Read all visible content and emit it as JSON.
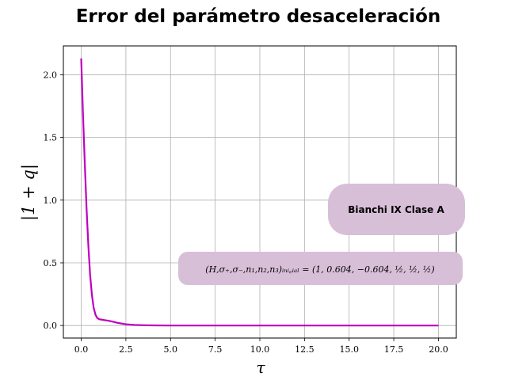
{
  "chart_data": {
    "type": "line",
    "title": "Error del parámetro desaceleración",
    "xlabel": "τ",
    "ylabel": "|1 + q|",
    "xlim": [
      -1.0,
      21.0
    ],
    "ylim": [
      -0.1,
      2.23
    ],
    "x_ticks": [
      0.0,
      2.5,
      5.0,
      7.5,
      10.0,
      12.5,
      15.0,
      17.5,
      20.0
    ],
    "x_tick_labels": [
      "0.0",
      "2.5",
      "5.0",
      "7.5",
      "10.0",
      "12.5",
      "15.0",
      "17.5",
      "20.0"
    ],
    "y_ticks": [
      0.0,
      0.5,
      1.0,
      1.5,
      2.0
    ],
    "y_tick_labels": [
      "0.0",
      "0.5",
      "1.0",
      "1.5",
      "2.0"
    ],
    "grid": true,
    "series": [
      {
        "color": "#bf00bf",
        "x": [
          0.0,
          0.1,
          0.2,
          0.3,
          0.4,
          0.5,
          0.6,
          0.7,
          0.8,
          0.9,
          1.0,
          1.2,
          1.5,
          1.8,
          2.0,
          2.5,
          3.0,
          3.5,
          4.0,
          5.0,
          6.0,
          8.0,
          10.0,
          12.5,
          15.0,
          17.5,
          20.0
        ],
        "y": [
          2.13,
          1.68,
          1.28,
          0.93,
          0.63,
          0.4,
          0.24,
          0.14,
          0.085,
          0.06,
          0.05,
          0.045,
          0.038,
          0.03,
          0.022,
          0.01,
          0.004,
          0.002,
          0.001,
          0.0,
          0.0,
          0.0,
          0.0,
          0.0,
          0.0,
          0.0,
          0.0
        ]
      }
    ],
    "annotations": [
      {
        "text": "Bianchi IX Clase A",
        "box_color": "#d8bfd8"
      },
      {
        "text": "(H,σ₊,σ₋,n₁,n₂,n₃)ᵢₙᵢ꜀ᵢₐₗ = (1, 0.604, −0.604, ½, ½, ½)",
        "box_color": "#d8bfd8"
      }
    ]
  }
}
